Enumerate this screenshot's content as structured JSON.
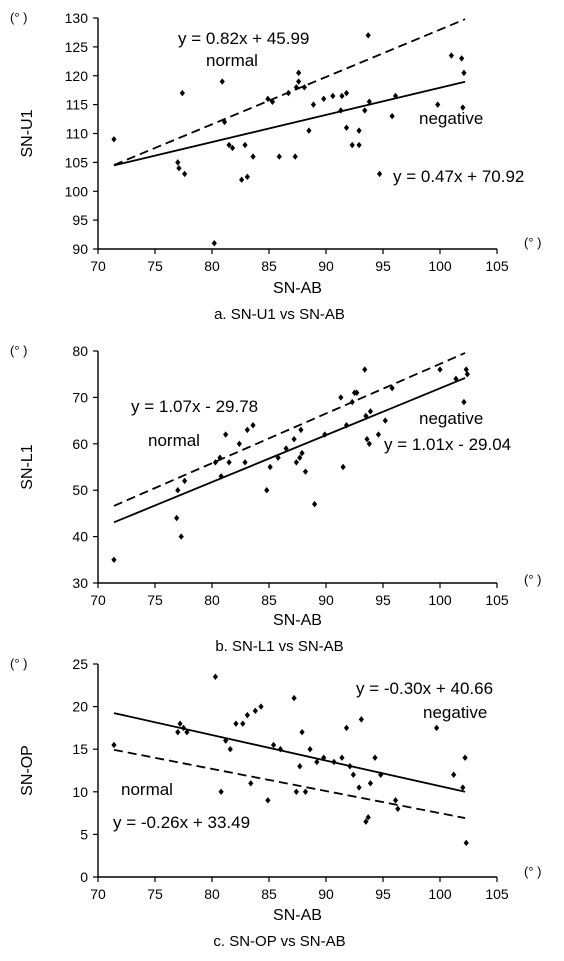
{
  "unit_label": "(° )",
  "chart_data": [
    {
      "type": "scatter",
      "caption": "a. SN-U1 vs SN-AB",
      "xlabel": "SN-AB",
      "ylabel": "SN-U1",
      "xlim": [
        70,
        105
      ],
      "ylim": [
        90,
        130
      ],
      "xticks": [
        70,
        75,
        80,
        85,
        90,
        95,
        100,
        105
      ],
      "yticks": [
        90,
        95,
        100,
        105,
        110,
        115,
        120,
        125,
        130
      ],
      "points": [
        [
          71.4,
          109
        ],
        [
          77,
          105
        ],
        [
          77.1,
          104
        ],
        [
          77.4,
          117
        ],
        [
          77.6,
          103
        ],
        [
          80.2,
          91
        ],
        [
          80.9,
          119
        ],
        [
          81.1,
          112
        ],
        [
          81.5,
          108
        ],
        [
          81.8,
          107.5
        ],
        [
          82.6,
          102
        ],
        [
          82.9,
          108
        ],
        [
          83.1,
          102.5
        ],
        [
          83.6,
          106
        ],
        [
          84.9,
          116
        ],
        [
          85.3,
          115.5
        ],
        [
          85.9,
          106
        ],
        [
          86.7,
          117
        ],
        [
          87.3,
          106
        ],
        [
          87.4,
          118
        ],
        [
          87.6,
          120.5
        ],
        [
          87.6,
          119
        ],
        [
          88.1,
          118
        ],
        [
          88.5,
          110.5
        ],
        [
          88.9,
          115
        ],
        [
          89.8,
          116
        ],
        [
          90.6,
          116.5
        ],
        [
          91.3,
          114
        ],
        [
          91.4,
          116.5
        ],
        [
          91.8,
          117
        ],
        [
          91.8,
          111
        ],
        [
          92.3,
          108
        ],
        [
          92.9,
          108
        ],
        [
          92.9,
          110.5
        ],
        [
          93.4,
          114
        ],
        [
          93.7,
          127
        ],
        [
          93.8,
          115.5
        ],
        [
          94.7,
          103
        ],
        [
          95.8,
          113
        ],
        [
          96.1,
          116.5
        ],
        [
          99.8,
          115
        ],
        [
          101,
          123.5
        ],
        [
          101.9,
          123
        ],
        [
          102,
          114.5
        ],
        [
          102.1,
          120.5
        ]
      ],
      "lines": [
        {
          "label": "normal",
          "equation": "y = 0.82x + 45.99",
          "slope": 0.82,
          "intercept": 45.99,
          "style": "dashed",
          "x_range": [
            71.4,
            102.2
          ]
        },
        {
          "label": "negative",
          "equation": "y = 0.47x + 70.92",
          "slope": 0.47,
          "intercept": 70.92,
          "style": "solid",
          "x_range": [
            71.4,
            102.2
          ]
        }
      ]
    },
    {
      "type": "scatter",
      "caption": "b. SN-L1 vs SN-AB",
      "xlabel": "SN-AB",
      "ylabel": "SN-L1",
      "xlim": [
        70,
        105
      ],
      "ylim": [
        30,
        80
      ],
      "xticks": [
        70,
        75,
        80,
        85,
        90,
        95,
        100,
        105
      ],
      "yticks": [
        30,
        40,
        50,
        60,
        70,
        80
      ],
      "points": [
        [
          71.4,
          35
        ],
        [
          76.9,
          44
        ],
        [
          77,
          50
        ],
        [
          77.3,
          40
        ],
        [
          77.6,
          52
        ],
        [
          80.3,
          56
        ],
        [
          80.7,
          57
        ],
        [
          80.8,
          53
        ],
        [
          81.2,
          62
        ],
        [
          81.5,
          56
        ],
        [
          82.4,
          60
        ],
        [
          82.9,
          56
        ],
        [
          83.1,
          63
        ],
        [
          83.6,
          64
        ],
        [
          84.8,
          50
        ],
        [
          85.1,
          55
        ],
        [
          85.8,
          57
        ],
        [
          86.5,
          59
        ],
        [
          87.2,
          61
        ],
        [
          87.4,
          56
        ],
        [
          87.7,
          57
        ],
        [
          87.8,
          63
        ],
        [
          87.9,
          58
        ],
        [
          88.2,
          54
        ],
        [
          89,
          47
        ],
        [
          89.9,
          62
        ],
        [
          91.3,
          70
        ],
        [
          91.5,
          55
        ],
        [
          91.8,
          64
        ],
        [
          92.3,
          69
        ],
        [
          92.5,
          71
        ],
        [
          92.7,
          71
        ],
        [
          93.4,
          76
        ],
        [
          93.5,
          66
        ],
        [
          93.6,
          61
        ],
        [
          93.8,
          60
        ],
        [
          93.9,
          67
        ],
        [
          94.6,
          62
        ],
        [
          95.2,
          65
        ],
        [
          95.8,
          72
        ],
        [
          100,
          76
        ],
        [
          101.4,
          74
        ],
        [
          102.1,
          69
        ],
        [
          102.3,
          76
        ],
        [
          102.4,
          75
        ]
      ],
      "lines": [
        {
          "label": "normal",
          "equation": "y = 1.07x - 29.78",
          "slope": 1.07,
          "intercept": -29.78,
          "style": "dashed",
          "x_range": [
            71.4,
            102.2
          ]
        },
        {
          "label": "negative",
          "equation": "y = 1.01x - 29.04",
          "slope": 1.01,
          "intercept": -29.04,
          "style": "solid",
          "x_range": [
            71.4,
            102.2
          ]
        }
      ]
    },
    {
      "type": "scatter",
      "caption": "c. SN-OP vs SN-AB",
      "xlabel": "SN-AB",
      "ylabel": "SN-OP",
      "xlim": [
        70,
        105
      ],
      "ylim": [
        0,
        25
      ],
      "xticks": [
        70,
        75,
        80,
        85,
        90,
        95,
        100,
        105
      ],
      "yticks": [
        0,
        5,
        10,
        15,
        20,
        25
      ],
      "points": [
        [
          71.4,
          15.5
        ],
        [
          77,
          17
        ],
        [
          77.2,
          18
        ],
        [
          77.5,
          17.5
        ],
        [
          77.8,
          17
        ],
        [
          80.3,
          23.5
        ],
        [
          80.8,
          10
        ],
        [
          81.2,
          16
        ],
        [
          81.6,
          15
        ],
        [
          82.1,
          18
        ],
        [
          82.7,
          18
        ],
        [
          83.1,
          19
        ],
        [
          83.4,
          11
        ],
        [
          83.8,
          19.5
        ],
        [
          84.3,
          20
        ],
        [
          84.9,
          9
        ],
        [
          85.4,
          15.5
        ],
        [
          86,
          15
        ],
        [
          87.2,
          21
        ],
        [
          87.4,
          10
        ],
        [
          87.7,
          13
        ],
        [
          87.9,
          17
        ],
        [
          88.2,
          10
        ],
        [
          88.6,
          15
        ],
        [
          89.2,
          13.5
        ],
        [
          89.8,
          14
        ],
        [
          90.7,
          13.5
        ],
        [
          91.4,
          14
        ],
        [
          91.8,
          17.5
        ],
        [
          92.1,
          13
        ],
        [
          92.4,
          12
        ],
        [
          92.9,
          10.5
        ],
        [
          93.1,
          18.5
        ],
        [
          93.5,
          6.5
        ],
        [
          93.7,
          7
        ],
        [
          93.9,
          11
        ],
        [
          94.3,
          14
        ],
        [
          94.8,
          12
        ],
        [
          96.1,
          9
        ],
        [
          96.3,
          8
        ],
        [
          99.7,
          17.5
        ],
        [
          101.2,
          12
        ],
        [
          102,
          10.5
        ],
        [
          102.2,
          14
        ],
        [
          102.3,
          4
        ]
      ],
      "lines": [
        {
          "label": "negative",
          "equation": "y = -0.30x + 40.66",
          "slope": -0.3,
          "intercept": 40.66,
          "style": "solid",
          "x_range": [
            71.4,
            102.2
          ]
        },
        {
          "label": "normal",
          "equation": "y = -0.26x + 33.49",
          "slope": -0.26,
          "intercept": 33.49,
          "style": "dashed",
          "x_range": [
            71.4,
            102.2
          ]
        }
      ]
    }
  ]
}
